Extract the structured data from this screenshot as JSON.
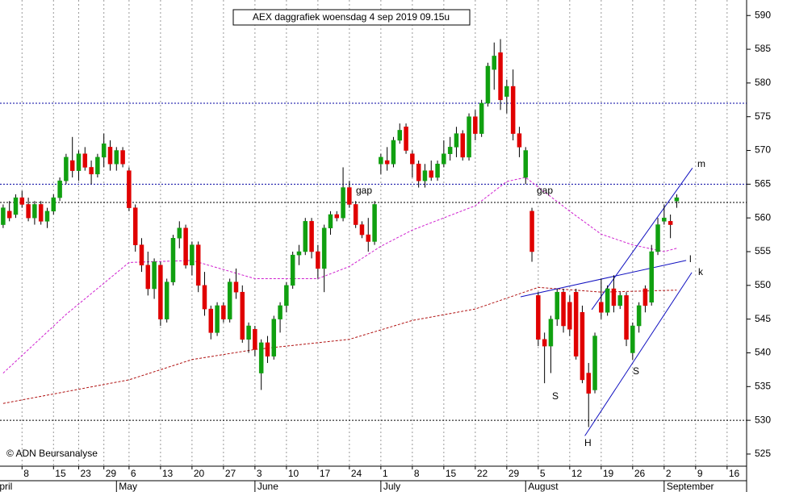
{
  "chart_data": {
    "type": "candlestick",
    "title": "AEX daggrafiek woensdag 4 sep 2019 09.15u",
    "source": "© ADN Beursanalyse",
    "up_color": "#10a010",
    "down_color": "#e00000",
    "x": [
      0,
      1,
      2,
      3,
      4,
      5,
      6,
      7,
      8,
      9,
      10,
      11,
      12,
      13,
      14,
      15,
      16,
      17,
      18,
      19,
      20,
      21,
      22,
      23,
      24,
      25,
      26,
      27,
      28,
      29,
      30,
      31,
      32,
      33,
      34,
      35,
      36,
      37,
      38,
      39,
      40,
      41,
      42,
      43,
      44,
      45,
      46,
      47,
      48,
      49,
      50,
      51,
      52,
      53,
      54,
      55,
      56,
      57,
      58,
      59,
      60,
      61,
      62,
      63,
      64,
      65,
      66,
      67,
      68,
      69,
      70,
      71,
      72,
      73,
      74,
      75,
      76,
      77,
      78,
      79,
      80,
      81,
      82,
      83,
      84,
      85,
      86,
      87,
      88,
      89,
      90,
      91,
      92,
      93,
      94,
      95,
      96,
      97,
      98,
      99,
      100,
      101,
      102,
      103,
      104,
      105,
      106,
      107
    ],
    "open": [
      559.0,
      561.0,
      560.5,
      563.0,
      562.0,
      560.0,
      562.0,
      559.5,
      561.0,
      563.0,
      565.5,
      568.5,
      567.0,
      569.5,
      567.5,
      566.5,
      569.0,
      570.5,
      568.0,
      570.0,
      567.0,
      561.5,
      556.0,
      553.0,
      549.5,
      553.0,
      545.0,
      550.5,
      557.0,
      558.5,
      553.0,
      556.0,
      550.0,
      546.5,
      543.0,
      547.0,
      545.0,
      550.5,
      549.0,
      542.0,
      543.5,
      537.0,
      541.5,
      539.5,
      545.0,
      547.0,
      550.0,
      554.5,
      555.0,
      559.5,
      555.0,
      552.5,
      558.5,
      560.5,
      560.0,
      564.5,
      562.0,
      559.0,
      557.5,
      556.5,
      568.0,
      568.5,
      568.0,
      571.5,
      573.5,
      569.5,
      568.0,
      565.5,
      567.0,
      566.0,
      568.0,
      569.5,
      570.5,
      572.5,
      569.0,
      575.0,
      572.5,
      577.0,
      582.0,
      584.5,
      578.0,
      579.5,
      572.5,
      566.0,
      561.0,
      548.5,
      542.0,
      541.0,
      545.0,
      549.0,
      547.5,
      549.0,
      546.0,
      537.0,
      534.5,
      547.5,
      546.0,
      549.5,
      547.0,
      548.5,
      540.0,
      544.0,
      549.5,
      547.5,
      555.0,
      559.5,
      559.5,
      562.5
    ],
    "high": [
      562.0,
      562.5,
      563.5,
      564.0,
      563.0,
      562.5,
      562.5,
      561.5,
      563.5,
      566.0,
      569.5,
      572.0,
      570.0,
      570.5,
      568.5,
      569.5,
      572.5,
      571.5,
      570.5,
      570.5,
      567.5,
      562.0,
      557.0,
      555.0,
      554.0,
      553.5,
      551.0,
      557.5,
      559.5,
      559.0,
      556.5,
      556.5,
      552.0,
      547.0,
      547.5,
      547.5,
      551.0,
      552.5,
      550.0,
      544.5,
      544.0,
      542.0,
      542.5,
      545.5,
      547.5,
      550.5,
      555.0,
      556.0,
      560.0,
      560.0,
      556.0,
      559.0,
      561.0,
      561.0,
      567.5,
      565.5,
      562.5,
      559.5,
      560.0,
      562.5,
      569.5,
      570.5,
      572.0,
      574.0,
      574.0,
      570.0,
      568.5,
      568.0,
      568.5,
      568.5,
      571.5,
      572.0,
      573.5,
      573.0,
      575.5,
      576.0,
      577.5,
      583.0,
      586.0,
      586.5,
      580.5,
      582.0,
      573.5,
      570.5,
      561.5,
      549.0,
      543.0,
      545.5,
      549.5,
      549.5,
      548.5,
      549.5,
      547.0,
      538.5,
      543.0,
      551.0,
      550.0,
      551.5,
      549.0,
      549.0,
      544.5,
      547.5,
      550.0,
      556.0,
      560.0,
      562.0,
      560.5,
      563.5
    ],
    "low": [
      558.5,
      559.5,
      560.0,
      561.5,
      559.5,
      559.0,
      559.0,
      558.5,
      560.5,
      562.5,
      565.0,
      566.0,
      565.5,
      567.0,
      565.0,
      566.0,
      567.5,
      567.0,
      567.0,
      567.5,
      561.0,
      555.0,
      552.0,
      548.5,
      548.0,
      544.0,
      544.5,
      550.0,
      555.5,
      552.5,
      551.5,
      549.0,
      545.5,
      542.0,
      542.5,
      544.5,
      544.5,
      548.0,
      541.5,
      540.0,
      539.5,
      534.5,
      538.5,
      539.0,
      543.0,
      546.0,
      549.5,
      553.0,
      554.5,
      554.0,
      551.0,
      549.0,
      557.5,
      559.5,
      559.5,
      561.5,
      558.5,
      557.0,
      555.0,
      556.0,
      566.5,
      567.0,
      567.5,
      571.0,
      569.5,
      566.0,
      564.5,
      564.5,
      565.5,
      565.5,
      567.5,
      568.5,
      569.0,
      568.5,
      568.5,
      571.5,
      572.0,
      576.5,
      579.0,
      576.0,
      575.5,
      571.5,
      569.0,
      565.0,
      553.5,
      541.0,
      535.5,
      537.0,
      544.0,
      543.0,
      542.5,
      539.0,
      535.5,
      529.0,
      534.0,
      545.0,
      545.5,
      546.0,
      546.5,
      541.0,
      539.0,
      543.0,
      546.0,
      547.0,
      554.5,
      559.0,
      557.0,
      561.5
    ],
    "close": [
      561.5,
      560.0,
      563.0,
      562.0,
      560.0,
      562.0,
      559.5,
      561.0,
      563.0,
      565.5,
      569.0,
      567.0,
      569.5,
      567.5,
      566.5,
      569.0,
      571.0,
      568.0,
      570.0,
      568.0,
      561.5,
      556.0,
      553.0,
      549.5,
      553.5,
      545.0,
      550.5,
      557.0,
      558.5,
      553.0,
      556.0,
      550.0,
      546.5,
      543.0,
      547.0,
      545.0,
      550.5,
      549.0,
      542.0,
      544.0,
      540.5,
      541.5,
      539.5,
      545.0,
      547.0,
      550.0,
      554.5,
      555.0,
      559.5,
      555.0,
      552.5,
      558.5,
      560.5,
      560.0,
      564.5,
      562.0,
      559.0,
      557.5,
      556.5,
      562.0,
      569.0,
      568.0,
      571.5,
      573.0,
      570.0,
      568.0,
      565.5,
      567.0,
      566.0,
      568.0,
      569.5,
      570.5,
      572.5,
      569.0,
      575.0,
      572.5,
      577.0,
      582.5,
      584.0,
      577.5,
      579.5,
      572.5,
      570.5,
      570.0,
      555.0,
      542.0,
      541.0,
      545.0,
      549.0,
      544.0,
      543.5,
      539.5,
      536.0,
      534.0,
      542.5,
      546.0,
      549.5,
      547.0,
      548.5,
      542.0,
      544.0,
      547.0,
      547.0,
      555.0,
      559.0,
      560.0,
      559.0,
      563.0
    ],
    "xlim": [
      -0.5,
      118.1
    ],
    "ylim": [
      523.2,
      592.3
    ],
    "yticks": [
      525,
      530,
      535,
      540,
      545,
      550,
      555,
      560,
      565,
      570,
      575,
      580,
      585,
      590
    ],
    "xticks": [
      {
        "value": 3,
        "label": "8"
      },
      {
        "value": 8,
        "label": "15"
      },
      {
        "value": 12,
        "label": "23"
      },
      {
        "value": 16,
        "label": "29"
      },
      {
        "value": 20,
        "label": "6"
      },
      {
        "value": 25,
        "label": "13"
      },
      {
        "value": 30,
        "label": "20"
      },
      {
        "value": 35,
        "label": "27"
      },
      {
        "value": 40,
        "label": "3"
      },
      {
        "value": 45,
        "label": "10"
      },
      {
        "value": 50,
        "label": "17"
      },
      {
        "value": 55,
        "label": "24"
      },
      {
        "value": 60,
        "label": "1"
      },
      {
        "value": 65,
        "label": "8"
      },
      {
        "value": 70,
        "label": "15"
      },
      {
        "value": 75,
        "label": "22"
      },
      {
        "value": 80,
        "label": "29"
      },
      {
        "value": 85,
        "label": "5"
      },
      {
        "value": 90,
        "label": "12"
      },
      {
        "value": 95,
        "label": "19"
      },
      {
        "value": 100,
        "label": "26"
      },
      {
        "value": 105,
        "label": "2"
      },
      {
        "value": 110,
        "label": "9"
      },
      {
        "value": 115,
        "label": "16"
      }
    ],
    "month_ticks": [
      {
        "value": -2,
        "label": "April"
      },
      {
        "value": 18,
        "label": "May"
      },
      {
        "value": 40,
        "label": "June"
      },
      {
        "value": 60,
        "label": "July"
      },
      {
        "value": 83,
        "label": "August"
      },
      {
        "value": 105,
        "label": "September"
      }
    ],
    "overlays": [
      {
        "color": "#d020d0",
        "x": [
          0,
          10,
          20,
          30,
          40,
          50,
          55,
          60,
          65,
          75,
          80,
          83,
          90,
          95,
          100,
          105,
          107
        ],
        "values": [
          537,
          545.7,
          553.4,
          553.7,
          551,
          551,
          552.8,
          555.8,
          558.2,
          561.8,
          565.4,
          566,
          561,
          557.6,
          556,
          555,
          555.5
        ]
      },
      {
        "color": "#b01010",
        "x": [
          0,
          20,
          30,
          40,
          55,
          65,
          75,
          85,
          95,
          107
        ],
        "values": [
          532.5,
          536,
          539,
          540.5,
          542,
          544.8,
          546.5,
          549.7,
          549,
          549.3
        ]
      }
    ],
    "hlines": [
      {
        "value": 577,
        "color": "#0000a0"
      },
      {
        "value": 565,
        "color": "#0000a0"
      },
      {
        "value": 562.3,
        "color": "#000000"
      },
      {
        "value": 530,
        "color": "#000000"
      }
    ],
    "trendlines": [
      {
        "color": "#1010c0",
        "x": [
          82.2,
          108.5
        ],
        "values": [
          548.3,
          553.7
        ]
      },
      {
        "color": "#1010c0",
        "x": [
          93.5,
          109.5
        ],
        "values": [
          546.4,
          567.4
        ]
      },
      {
        "color": "#1010c0",
        "x": [
          92.4,
          109.4
        ],
        "values": [
          527.7,
          551.9
        ]
      }
    ],
    "annotations": [
      {
        "text": "gap"
      },
      {
        "text": "gap"
      },
      {
        "text": "S"
      },
      {
        "text": "S"
      },
      {
        "text": "H"
      },
      {
        "text": "m"
      },
      {
        "text": "l"
      },
      {
        "text": "k"
      }
    ]
  }
}
